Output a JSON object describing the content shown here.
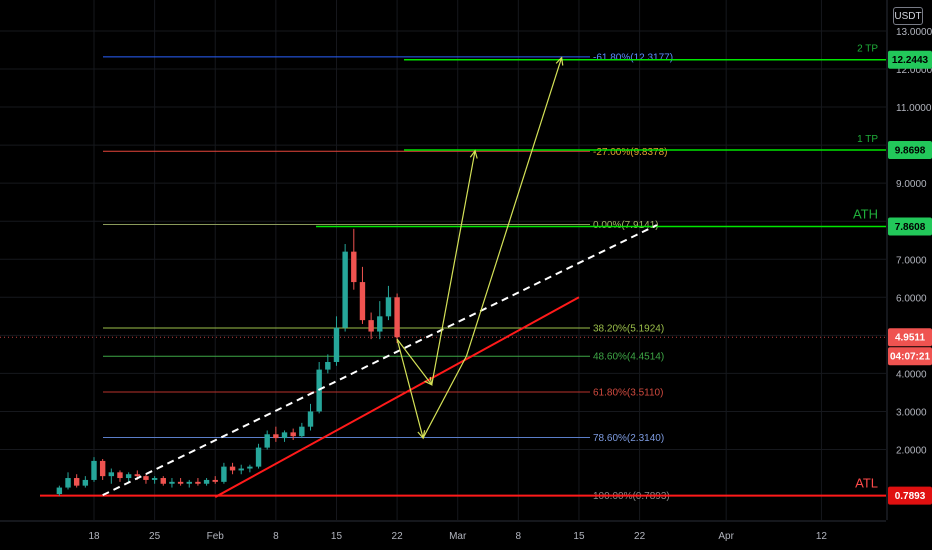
{
  "currency": "USDT",
  "colors": {
    "background": "#000000",
    "grid": "#16181d",
    "axis_text": "#b2b5be",
    "bull": "#26a69a",
    "bear": "#ef5350",
    "green_level": "#00e600",
    "red_level": "#ff1a1a",
    "yellow": "#d4e157",
    "white": "#ffffff"
  },
  "chart_data": {
    "type": "candlestick",
    "title": "",
    "ylabel": "USDT",
    "ylim": [
      0.2,
      13.3
    ],
    "y_ticks": [
      "2.0000",
      "3.0000",
      "4.0000",
      "5.0000",
      "6.0000",
      "7.0000",
      "8.0000",
      "9.0000",
      "10.0000",
      "11.0000",
      "12.0000",
      "13.0000"
    ],
    "x_ticks": [
      "18",
      "25",
      "Feb",
      "8",
      "15",
      "22",
      "Mar",
      "8",
      "15",
      "22",
      "Apr",
      "12"
    ],
    "x_tick_days": [
      0,
      7,
      14,
      21,
      28,
      35,
      42,
      49,
      56,
      63,
      73,
      84
    ],
    "grid": true,
    "current_price": "4.9511",
    "countdown": "04:07:21",
    "candles": [
      {
        "day": -4,
        "o": 0.83,
        "h": 1.05,
        "l": 0.78,
        "c": 1.0
      },
      {
        "day": -3,
        "o": 1.0,
        "h": 1.4,
        "l": 0.95,
        "c": 1.25
      },
      {
        "day": -2,
        "o": 1.25,
        "h": 1.35,
        "l": 1.0,
        "c": 1.05
      },
      {
        "day": -1,
        "o": 1.05,
        "h": 1.3,
        "l": 1.0,
        "c": 1.2
      },
      {
        "day": 0,
        "o": 1.2,
        "h": 1.8,
        "l": 1.15,
        "c": 1.7
      },
      {
        "day": 1,
        "o": 1.7,
        "h": 1.75,
        "l": 1.2,
        "c": 1.3
      },
      {
        "day": 2,
        "o": 1.3,
        "h": 1.5,
        "l": 1.1,
        "c": 1.4
      },
      {
        "day": 3,
        "o": 1.4,
        "h": 1.45,
        "l": 1.15,
        "c": 1.25
      },
      {
        "day": 4,
        "o": 1.25,
        "h": 1.4,
        "l": 1.15,
        "c": 1.35
      },
      {
        "day": 5,
        "o": 1.35,
        "h": 1.45,
        "l": 1.2,
        "c": 1.3
      },
      {
        "day": 6,
        "o": 1.3,
        "h": 1.35,
        "l": 1.1,
        "c": 1.2
      },
      {
        "day": 7,
        "o": 1.2,
        "h": 1.3,
        "l": 1.1,
        "c": 1.25
      },
      {
        "day": 8,
        "o": 1.25,
        "h": 1.3,
        "l": 1.05,
        "c": 1.1
      },
      {
        "day": 9,
        "o": 1.1,
        "h": 1.25,
        "l": 1.0,
        "c": 1.15
      },
      {
        "day": 10,
        "o": 1.15,
        "h": 1.25,
        "l": 1.05,
        "c": 1.1
      },
      {
        "day": 11,
        "o": 1.1,
        "h": 1.2,
        "l": 1.0,
        "c": 1.15
      },
      {
        "day": 12,
        "o": 1.15,
        "h": 1.25,
        "l": 1.05,
        "c": 1.1
      },
      {
        "day": 13,
        "o": 1.1,
        "h": 1.25,
        "l": 1.05,
        "c": 1.2
      },
      {
        "day": 14,
        "o": 1.2,
        "h": 1.3,
        "l": 1.1,
        "c": 1.15
      },
      {
        "day": 15,
        "o": 1.15,
        "h": 1.65,
        "l": 1.1,
        "c": 1.55
      },
      {
        "day": 16,
        "o": 1.55,
        "h": 1.65,
        "l": 1.35,
        "c": 1.45
      },
      {
        "day": 17,
        "o": 1.45,
        "h": 1.6,
        "l": 1.35,
        "c": 1.5
      },
      {
        "day": 18,
        "o": 1.5,
        "h": 1.6,
        "l": 1.4,
        "c": 1.55
      },
      {
        "day": 19,
        "o": 1.55,
        "h": 2.15,
        "l": 1.5,
        "c": 2.05
      },
      {
        "day": 20,
        "o": 2.05,
        "h": 2.5,
        "l": 2.0,
        "c": 2.4
      },
      {
        "day": 21,
        "o": 2.4,
        "h": 2.6,
        "l": 2.2,
        "c": 2.3
      },
      {
        "day": 22,
        "o": 2.3,
        "h": 2.5,
        "l": 2.2,
        "c": 2.45
      },
      {
        "day": 23,
        "o": 2.45,
        "h": 2.55,
        "l": 2.25,
        "c": 2.35
      },
      {
        "day": 24,
        "o": 2.35,
        "h": 2.7,
        "l": 2.3,
        "c": 2.6
      },
      {
        "day": 25,
        "o": 2.6,
        "h": 3.2,
        "l": 2.5,
        "c": 3.0
      },
      {
        "day": 26,
        "o": 3.0,
        "h": 4.3,
        "l": 2.95,
        "c": 4.1
      },
      {
        "day": 27,
        "o": 4.1,
        "h": 4.5,
        "l": 4.0,
        "c": 4.3
      },
      {
        "day": 28,
        "o": 4.3,
        "h": 5.5,
        "l": 4.2,
        "c": 5.2
      },
      {
        "day": 29,
        "o": 5.2,
        "h": 7.4,
        "l": 5.1,
        "c": 7.2
      },
      {
        "day": 30,
        "o": 7.2,
        "h": 7.8,
        "l": 6.2,
        "c": 6.4
      },
      {
        "day": 31,
        "o": 6.4,
        "h": 6.8,
        "l": 5.3,
        "c": 5.4
      },
      {
        "day": 32,
        "o": 5.4,
        "h": 5.6,
        "l": 4.9,
        "c": 5.1
      },
      {
        "day": 33,
        "o": 5.1,
        "h": 5.9,
        "l": 4.9,
        "c": 5.5
      },
      {
        "day": 34,
        "o": 5.5,
        "h": 6.3,
        "l": 5.4,
        "c": 6.0
      },
      {
        "day": 35,
        "o": 6.0,
        "h": 6.1,
        "l": 4.8,
        "c": 4.95
      }
    ],
    "fib_levels": [
      {
        "label": "-61.80%(12.3177)",
        "value": 12.3177,
        "color": "#2962ff",
        "text_color": "#5b8cff"
      },
      {
        "label": "-27.00%(9.8378)",
        "value": 9.8378,
        "color": "#e5453b",
        "text_color": "#e0a030"
      },
      {
        "label": "0.00%(7.9141)",
        "value": 7.9141,
        "color": "#8a9a5b",
        "text_color": "#a6b46a"
      },
      {
        "label": "38.20%(5.1924)",
        "value": 5.1924,
        "color": "#9bbf4a",
        "text_color": "#9bbf4a"
      },
      {
        "label": "48.60%(4.4514)",
        "value": 4.4514,
        "color": "#3ea646",
        "text_color": "#3ea646"
      },
      {
        "label": "61.80%(3.5110)",
        "value": 3.511,
        "color": "#b8322c",
        "text_color": "#d04a3f"
      },
      {
        "label": "78.60%(2.3140)",
        "value": 2.314,
        "color": "#5b7ec9",
        "text_color": "#7d9be0"
      },
      {
        "label": "100.00%(0.7893)",
        "value": 0.7893,
        "color": "#6a6a6a",
        "text_color": "#8a8a8a"
      }
    ],
    "key_levels": [
      {
        "name": "2 TP",
        "value": "12.2443",
        "color": "#00e600",
        "text_color": "#1fae3a"
      },
      {
        "name": "1 TP",
        "value": "9.8698",
        "color": "#00e600",
        "text_color": "#1fae3a"
      },
      {
        "name": "ATH",
        "value": "7.8608",
        "color": "#00e600",
        "text_color": "#1fae3a"
      },
      {
        "name": "ATL",
        "value": "0.7893",
        "color": "#ff1a1a",
        "text_color": "#ff4a4a"
      }
    ],
    "trend_lines": [
      {
        "from": {
          "day": 1,
          "price": 0.8
        },
        "to": {
          "day": 65,
          "price": 7.9
        },
        "color": "#ffffff",
        "style": "dashed"
      },
      {
        "from": {
          "day": 14,
          "price": 0.75
        },
        "to": {
          "day": 56,
          "price": 6.0
        },
        "color": "#ff1a1a",
        "style": "solid"
      }
    ],
    "projection_path": [
      {
        "day": 35,
        "price": 4.9
      },
      {
        "day": 39,
        "price": 3.7
      },
      {
        "day": 44,
        "price": 9.85
      },
      {
        "day": 38,
        "price": 2.3
      },
      {
        "day": 43,
        "price": 4.45
      },
      {
        "day": 54,
        "price": 12.3
      }
    ]
  }
}
